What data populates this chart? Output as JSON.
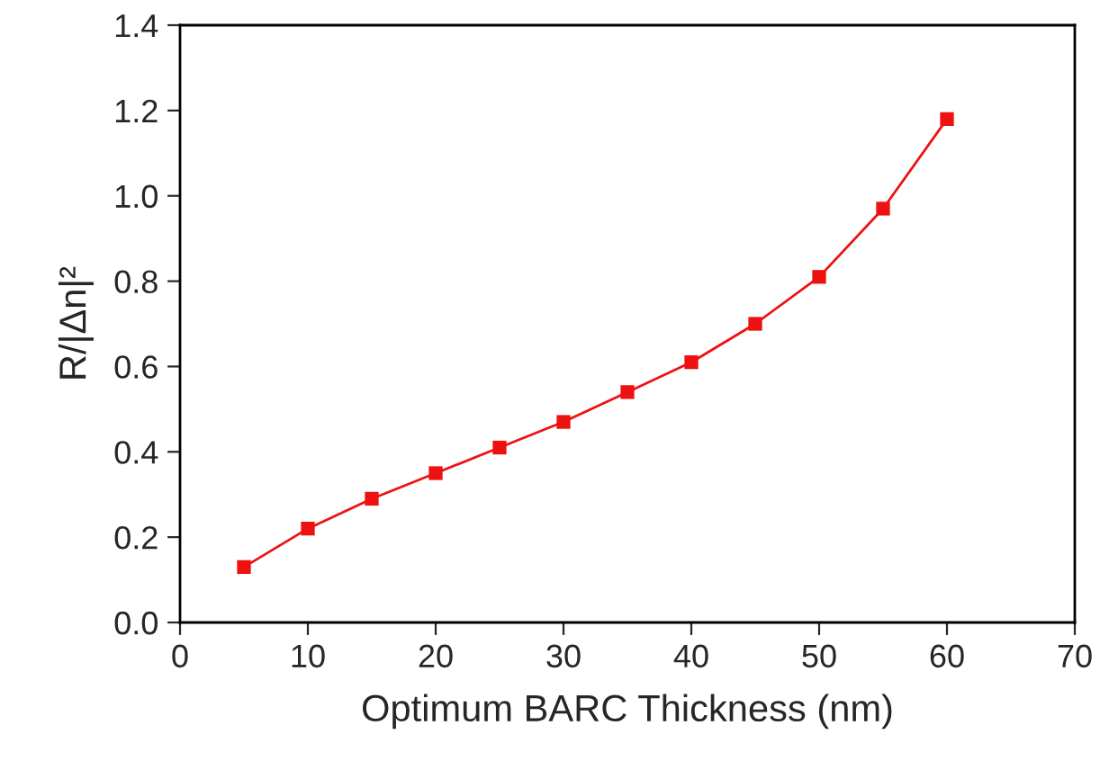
{
  "chart_data": {
    "type": "line",
    "xlabel": "Optimum BARC Thickness (nm)",
    "ylabel": "R/|Δn|²",
    "x": [
      5,
      10,
      15,
      20,
      25,
      30,
      35,
      40,
      45,
      50,
      55,
      60
    ],
    "series": [
      {
        "color": "#ee1111",
        "values": [
          0.13,
          0.22,
          0.29,
          0.35,
          0.41,
          0.47,
          0.54,
          0.61,
          0.7,
          0.81,
          0.97,
          1.18
        ]
      }
    ],
    "xlim": [
      0,
      70
    ],
    "xticks": [
      0,
      10,
      20,
      30,
      40,
      50,
      60,
      70
    ],
    "ylim": [
      0,
      1.4
    ],
    "yticks": [
      {
        "value": 0,
        "label": "0.0"
      },
      {
        "value": 0.2,
        "label": "0.2"
      },
      {
        "value": 0.4,
        "label": "0.4"
      },
      {
        "value": 0.6,
        "label": "0.6"
      },
      {
        "value": 0.8,
        "label": "0.8"
      },
      {
        "value": 1.0,
        "label": "1.0"
      },
      {
        "value": 1.2,
        "label": "1.2"
      },
      {
        "value": 1.4,
        "label": "1.4"
      }
    ],
    "marker": "square",
    "line_style": "solid",
    "grid": false,
    "legend": false
  }
}
